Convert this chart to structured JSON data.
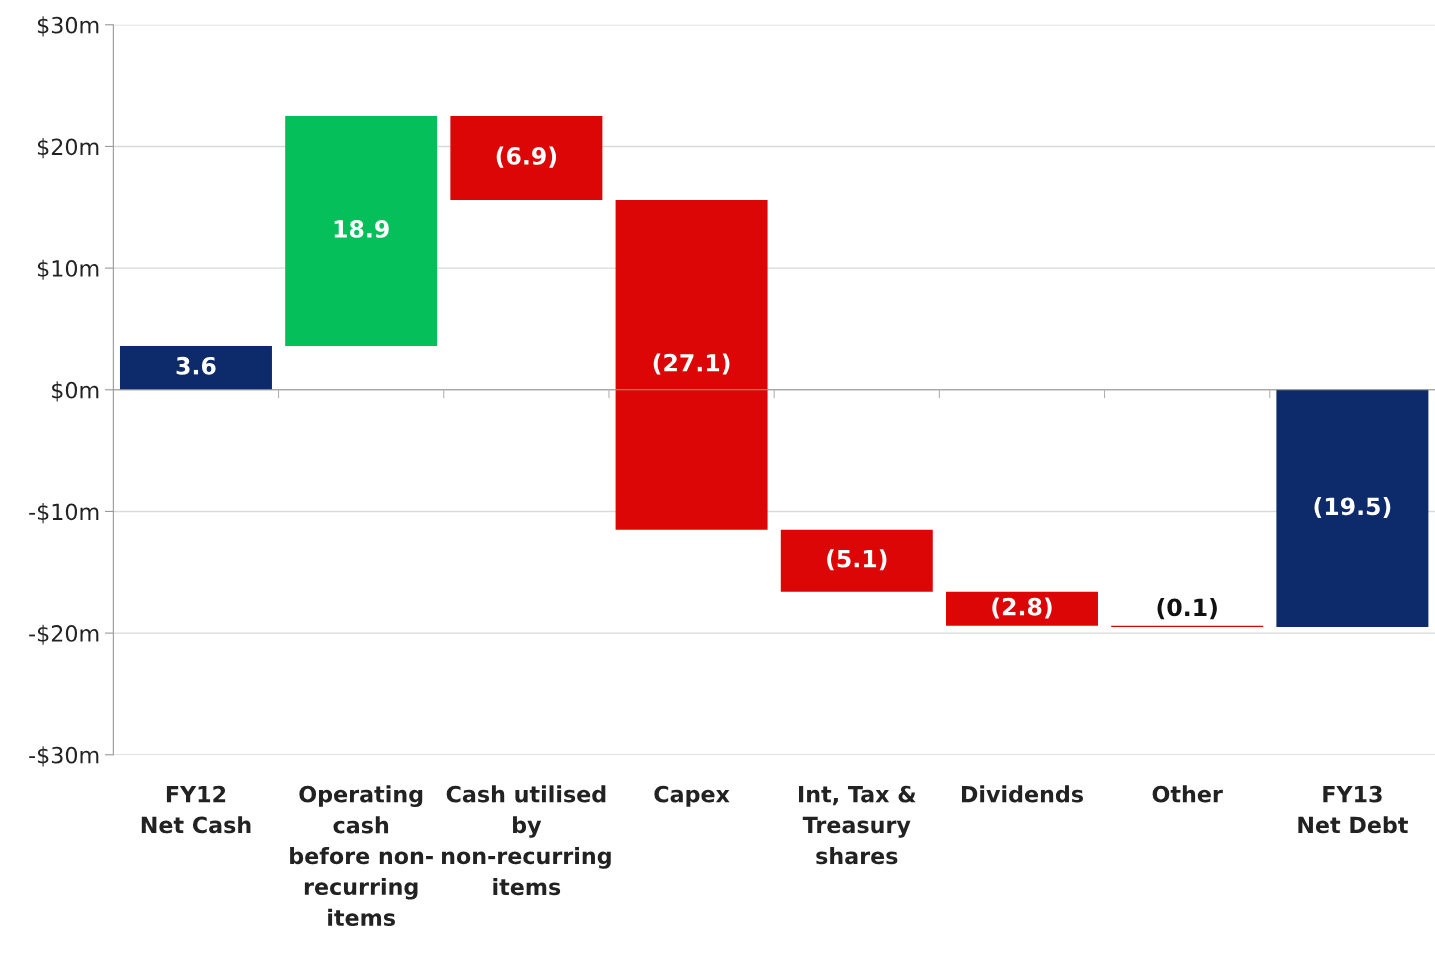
{
  "chart_data": {
    "type": "bar",
    "categories": [
      "FY12\nNet Cash",
      "Operating\ncash\nbefore non-\nrecurring\nitems",
      "Cash utilised\nby\nnon-recurring\nitems",
      "Capex",
      "Int, Tax &\nTreasury\nshares",
      "Dividends",
      "Other",
      "FY13\nNet Debt"
    ],
    "values": [
      3.6,
      18.9,
      -6.9,
      -27.1,
      -5.1,
      -2.8,
      -0.1,
      -19.5
    ],
    "base": [
      0,
      3.6,
      22.5,
      15.6,
      -11.5,
      -16.6,
      -19.4,
      0
    ],
    "colors": [
      "#0d2a6b",
      "#05c05a",
      "#dd0606",
      "#dd0606",
      "#dd0606",
      "#dd0606",
      "#dd0606",
      "#0d2a6b"
    ],
    "value_labels": [
      "3.6",
      "18.9",
      "(6.9)",
      "(27.1)",
      "(5.1)",
      "(2.8)",
      "(0.1)",
      "(19.5)"
    ],
    "ylim": [
      -30,
      30
    ],
    "yticks": [
      {
        "value": -30,
        "label": "-$30m"
      },
      {
        "value": -20,
        "label": "-$20m"
      },
      {
        "value": -10,
        "label": "-$10m"
      },
      {
        "value": 0,
        "label": "$0m"
      },
      {
        "value": 10,
        "label": "$10m"
      },
      {
        "value": 20,
        "label": "$20m"
      },
      {
        "value": 30,
        "label": "$30m"
      }
    ],
    "grid": "y"
  }
}
